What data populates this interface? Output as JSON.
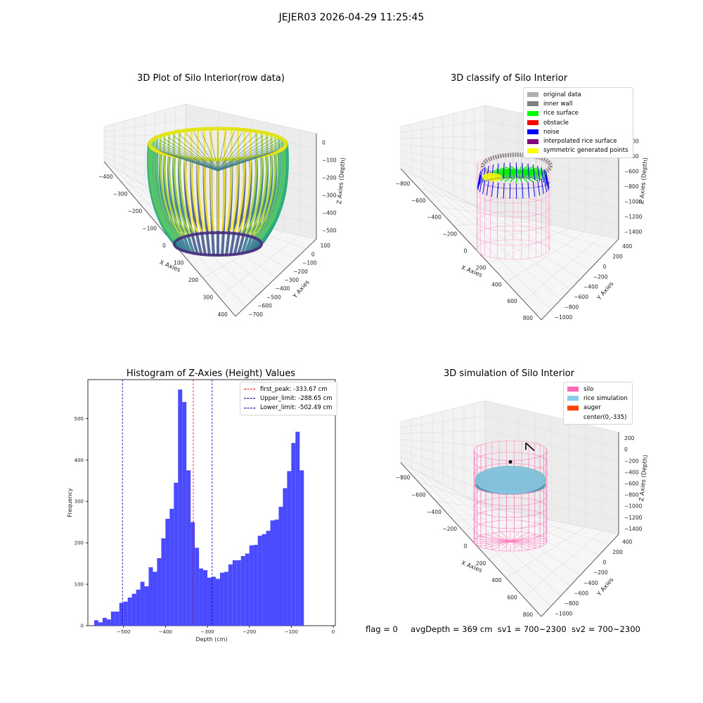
{
  "figure_title": "JEJER03 2026-04-29 11:25:45",
  "status": {
    "flag": "flag = 0",
    "avg_depth": "avgDepth = 369 cm",
    "sv1": "sv1 = 700~2300",
    "sv2": "sv2 = 700~2300"
  },
  "chart_data": [
    {
      "type": "scatter3d",
      "title": "3D Plot of Silo Interior(row data)",
      "xlabel": "X Axies",
      "ylabel": "Y Axies",
      "zlabel": "Z Axies (Depth)",
      "x_ticks": [
        -400,
        -300,
        -200,
        -100,
        0,
        100,
        200,
        300,
        400
      ],
      "y_ticks": [
        100,
        0,
        -100,
        -200,
        -300,
        -400,
        -500,
        -600,
        -700
      ],
      "z_ticks": [
        0,
        -100,
        -200,
        -300,
        -400,
        -500
      ],
      "colormap": "viridis",
      "grid": true
    },
    {
      "type": "scatter3d",
      "title": "3D classify of Silo Interior",
      "xlabel": "X Axies",
      "ylabel": "Y Axies",
      "zlabel": "Z Axies (Depth)",
      "x_ticks": [
        -800,
        -600,
        -400,
        -200,
        0,
        200,
        400,
        600,
        800
      ],
      "y_ticks": [
        400,
        200,
        0,
        -200,
        -400,
        -600,
        -800,
        -1000
      ],
      "z_ticks": [
        -200,
        -400,
        -600,
        -800,
        -1000,
        -1200,
        -1400
      ],
      "legend_position": "top-right",
      "legend": [
        {
          "label": "original data",
          "color": "#b0b0b0"
        },
        {
          "label": "inner wall",
          "color": "#808080"
        },
        {
          "label": "rice surface",
          "color": "#00ff00"
        },
        {
          "label": "obstacle",
          "color": "#ff0000"
        },
        {
          "label": "noise",
          "color": "#0000ff"
        },
        {
          "label": "interpolated rice surface",
          "color": "#800080"
        },
        {
          "label": "symmetric generated points",
          "color": "#ffff00"
        }
      ],
      "grid": true
    },
    {
      "type": "bar",
      "title": "Histogram of Z-Axies (Height) Values",
      "xlabel": "Depth (cm)",
      "ylabel": "Frequency",
      "xlim": [
        -585,
        5
      ],
      "ylim": [
        0,
        594
      ],
      "x_ticks": [
        -500,
        -400,
        -300,
        -200,
        -100,
        0
      ],
      "y_ticks": [
        0,
        100,
        200,
        300,
        400,
        500
      ],
      "bin_start": -570,
      "bin_width": 10,
      "values": [
        13,
        8,
        19,
        15,
        34,
        34,
        55,
        58,
        68,
        77,
        87,
        106,
        95,
        141,
        130,
        163,
        211,
        258,
        282,
        345,
        570,
        540,
        375,
        250,
        188,
        138,
        134,
        116,
        118,
        113,
        128,
        130,
        148,
        158,
        158,
        168,
        174,
        194,
        195,
        217,
        221,
        229,
        254,
        256,
        287,
        332,
        373,
        441,
        468,
        375
      ],
      "bar_color": "#4a4aff",
      "legend_position": "top-right",
      "lines": [
        {
          "label": "first_peak: -333.67 cm",
          "x": -333.67,
          "color": "#ff0000"
        },
        {
          "label": "Upper_limit: -288.65 cm",
          "x": -288.65,
          "color": "#0000aa"
        },
        {
          "label": "Lower_limit: -502.49 cm",
          "x": -502.49,
          "color": "#0000aa"
        }
      ]
    },
    {
      "type": "surface3d",
      "title": "3D simulation of Silo Interior",
      "xlabel": "X Axies",
      "ylabel": "Y Axies",
      "zlabel": "Z Axies (Depth)",
      "x_ticks": [
        -800,
        -600,
        -400,
        -200,
        0,
        200,
        400,
        600,
        800
      ],
      "y_ticks": [
        400,
        200,
        0,
        -200,
        -400,
        -600,
        -800,
        -1000
      ],
      "z_ticks": [
        200,
        0,
        -200,
        -400,
        -600,
        -800,
        -1000,
        -1200,
        -1400
      ],
      "legend_position": "top-right",
      "legend": [
        {
          "label": "silo",
          "color": "#ff69b4"
        },
        {
          "label": "rice simulation",
          "color": "#87ceeb"
        },
        {
          "label": "auger",
          "color": "#ff4500"
        },
        {
          "label": "center(0,-335)",
          "color": ""
        }
      ],
      "grid": true
    }
  ]
}
